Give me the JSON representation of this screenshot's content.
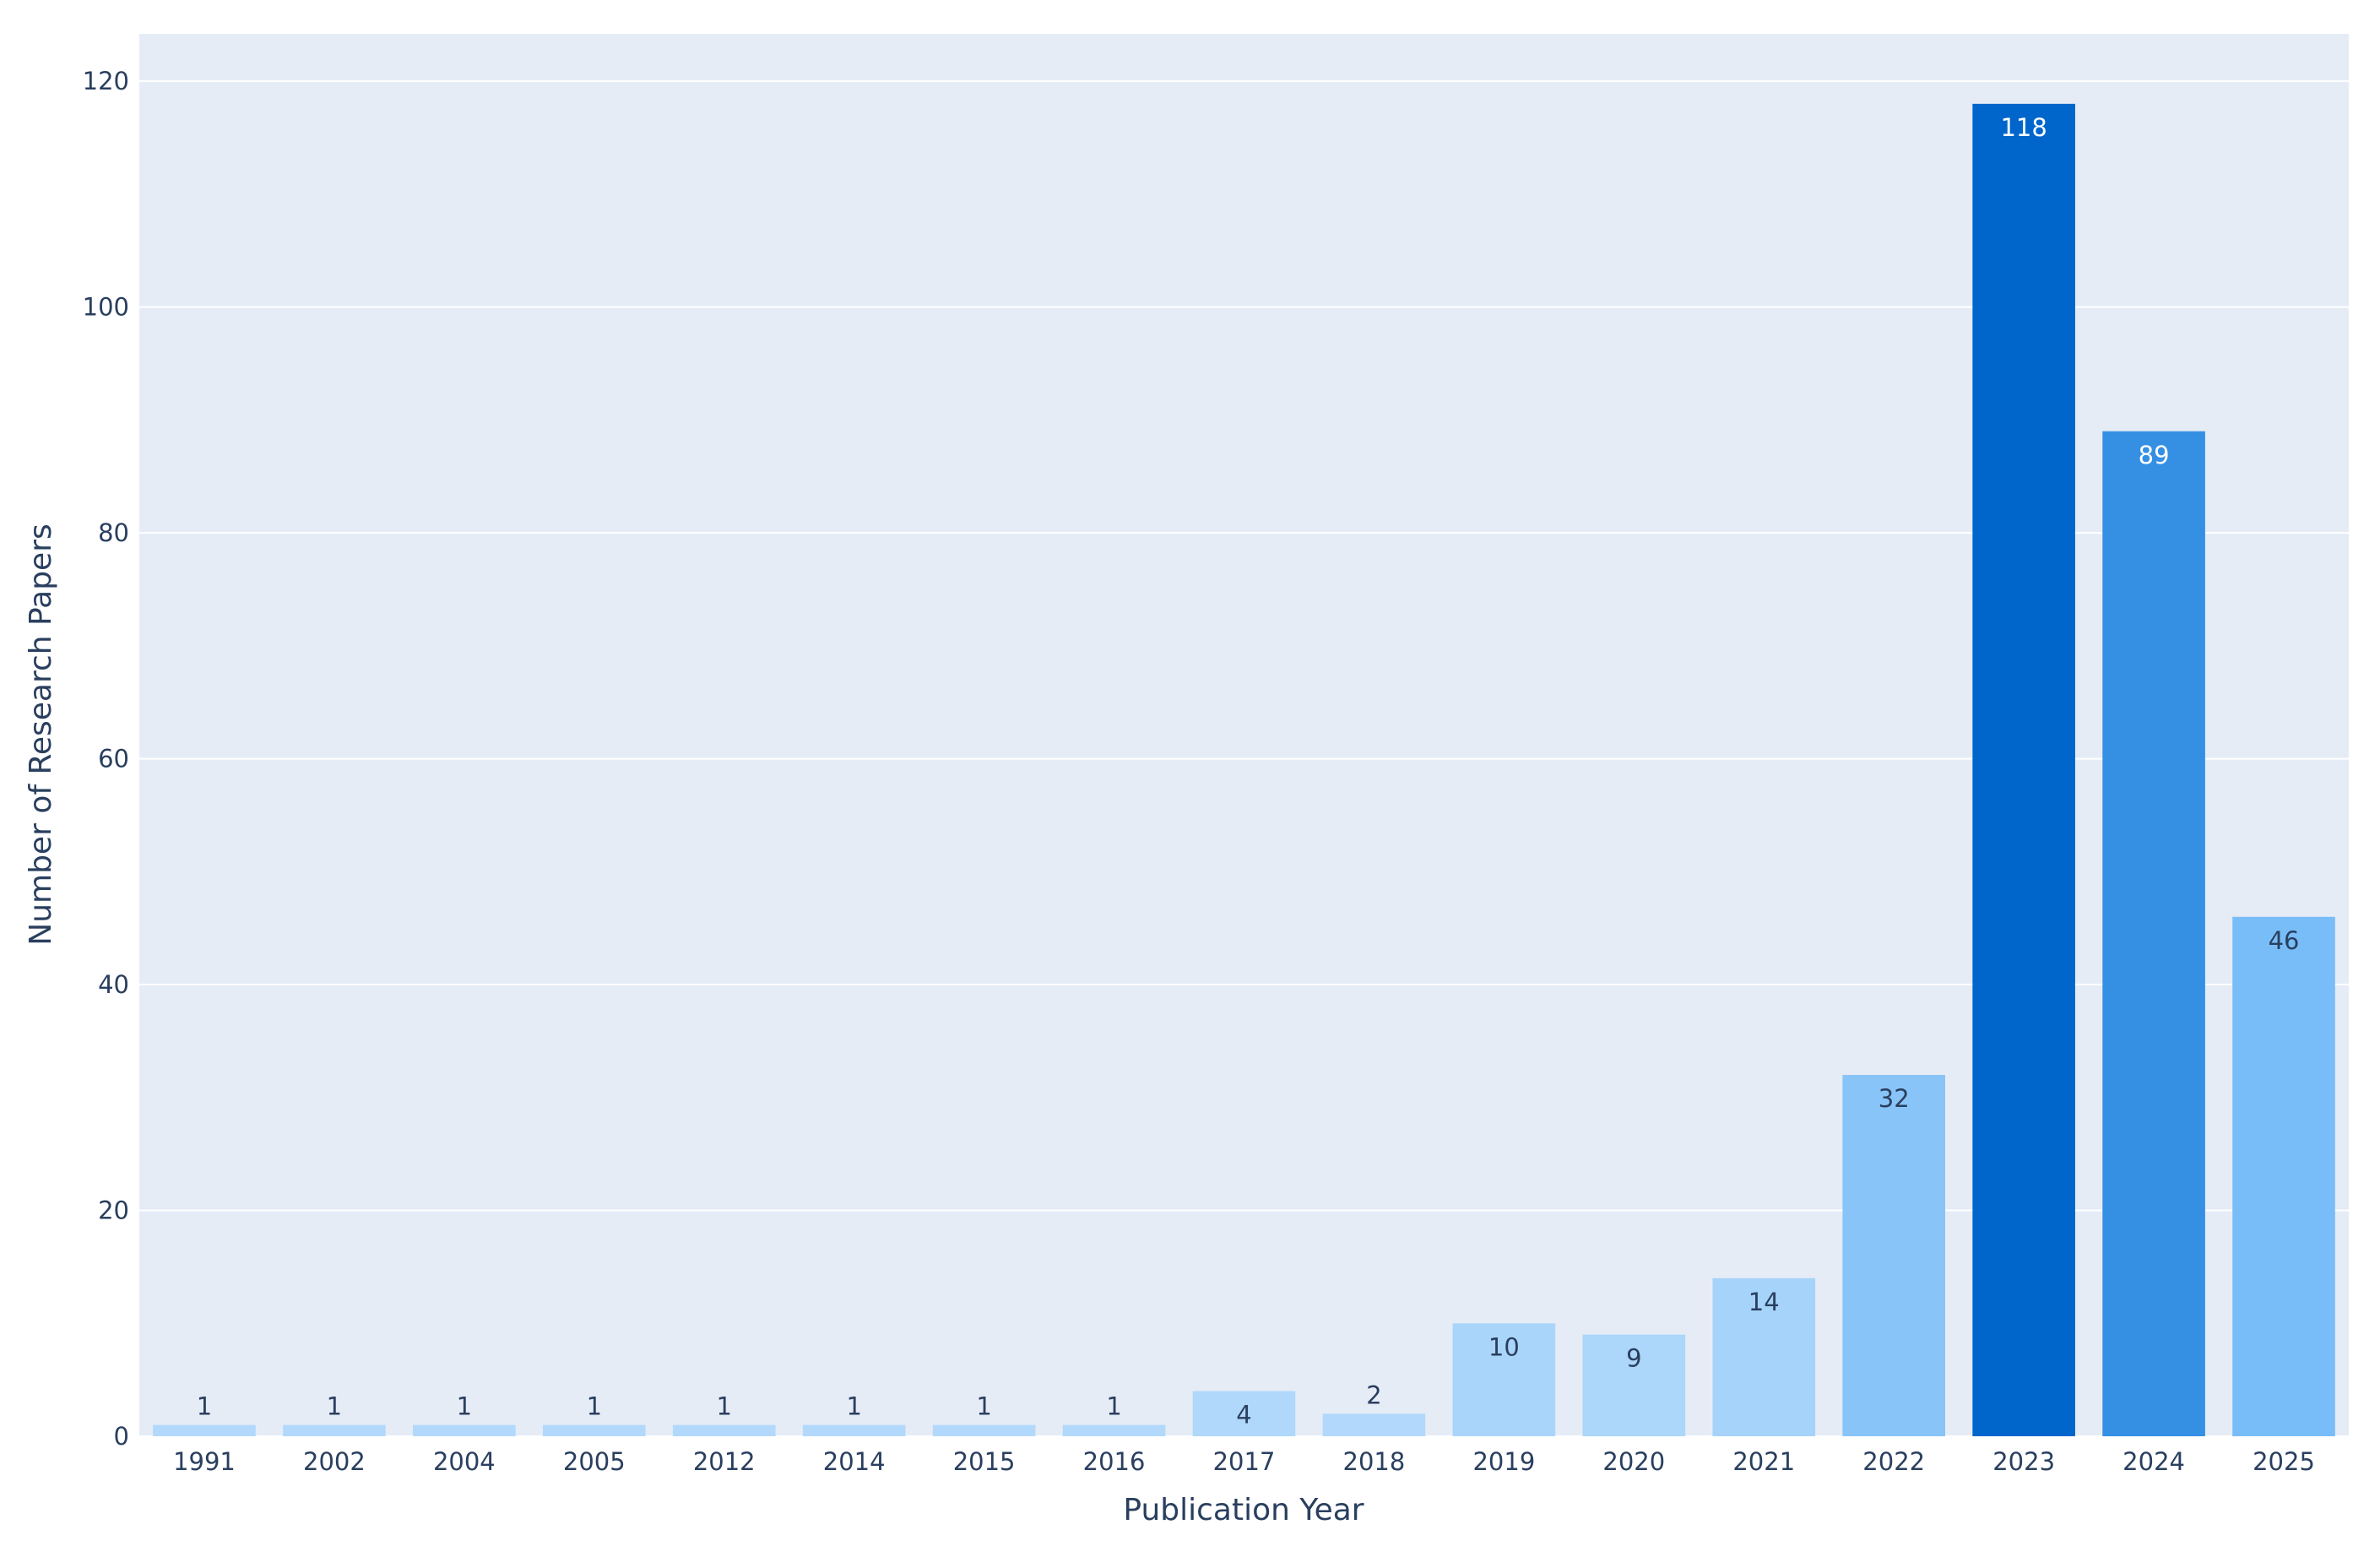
{
  "chart_data": {
    "type": "bar",
    "x_label": "Publication Year",
    "y_label": "Number of Research Papers",
    "categories": [
      "1991",
      "2002",
      "2004",
      "2005",
      "2012",
      "2014",
      "2015",
      "2016",
      "2017",
      "2018",
      "2019",
      "2020",
      "2021",
      "2022",
      "2023",
      "2024",
      "2025"
    ],
    "values": [
      1,
      1,
      1,
      1,
      1,
      1,
      1,
      1,
      4,
      2,
      10,
      9,
      14,
      32,
      118,
      89,
      46
    ],
    "colors": [
      "#b2d9fb",
      "#b2d9fb",
      "#b2d9fb",
      "#b2d9fb",
      "#b2d9fb",
      "#b2d9fb",
      "#b2d9fb",
      "#b2d9fb",
      "#b0d8fb",
      "#b2d9fb",
      "#aad5fa",
      "#acd6fa",
      "#a6d3fa",
      "#88c4f7",
      "#0066cc",
      "#3590e4",
      "#78bdf8"
    ],
    "ylim": [
      0,
      124.2
    ],
    "yticks": [
      0,
      20,
      40,
      60,
      80,
      100,
      120
    ],
    "grid": true,
    "background": "#e5ecf6"
  }
}
